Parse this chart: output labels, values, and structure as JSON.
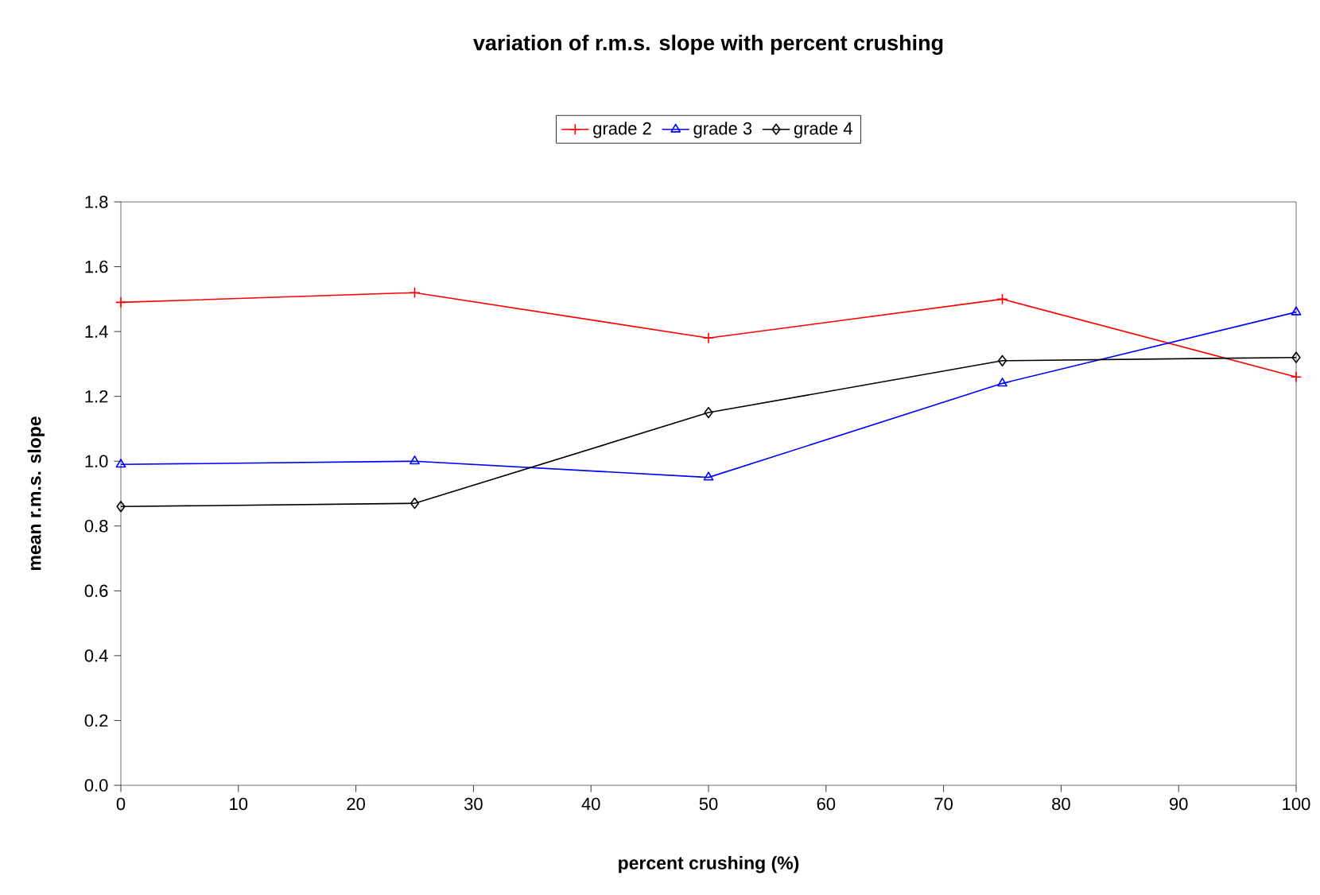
{
  "chart_data": {
    "type": "line",
    "title": "variation of r.m.s. slope with percent crushing",
    "xlabel": "percent crushing (%)",
    "ylabel": "mean r.m.s. slope",
    "x": [
      0,
      25,
      50,
      75,
      100
    ],
    "series": [
      {
        "name": "grade 2",
        "color": "#ff0000",
        "marker": "cross",
        "values": [
          1.49,
          1.52,
          1.38,
          1.5,
          1.26
        ]
      },
      {
        "name": "grade 3",
        "color": "#0000ff",
        "marker": "triangle",
        "values": [
          0.99,
          1.0,
          0.95,
          1.24,
          1.46
        ]
      },
      {
        "name": "grade 4",
        "color": "#000000",
        "marker": "diamond",
        "values": [
          0.86,
          0.87,
          1.15,
          1.31,
          1.32
        ]
      }
    ],
    "xlim": [
      0,
      100
    ],
    "xticks": [
      0,
      10,
      20,
      30,
      40,
      50,
      60,
      70,
      80,
      90,
      100
    ],
    "ylim": [
      0,
      1.8
    ],
    "yticks": [
      {
        "value": 0,
        "label": "0.0"
      },
      0.2,
      0.4,
      0.6,
      0.8,
      {
        "value": 1,
        "label": "1.0"
      },
      1.2,
      1.4,
      1.6,
      1.8
    ],
    "grid": false,
    "legend": "top",
    "line_style": "solid"
  }
}
